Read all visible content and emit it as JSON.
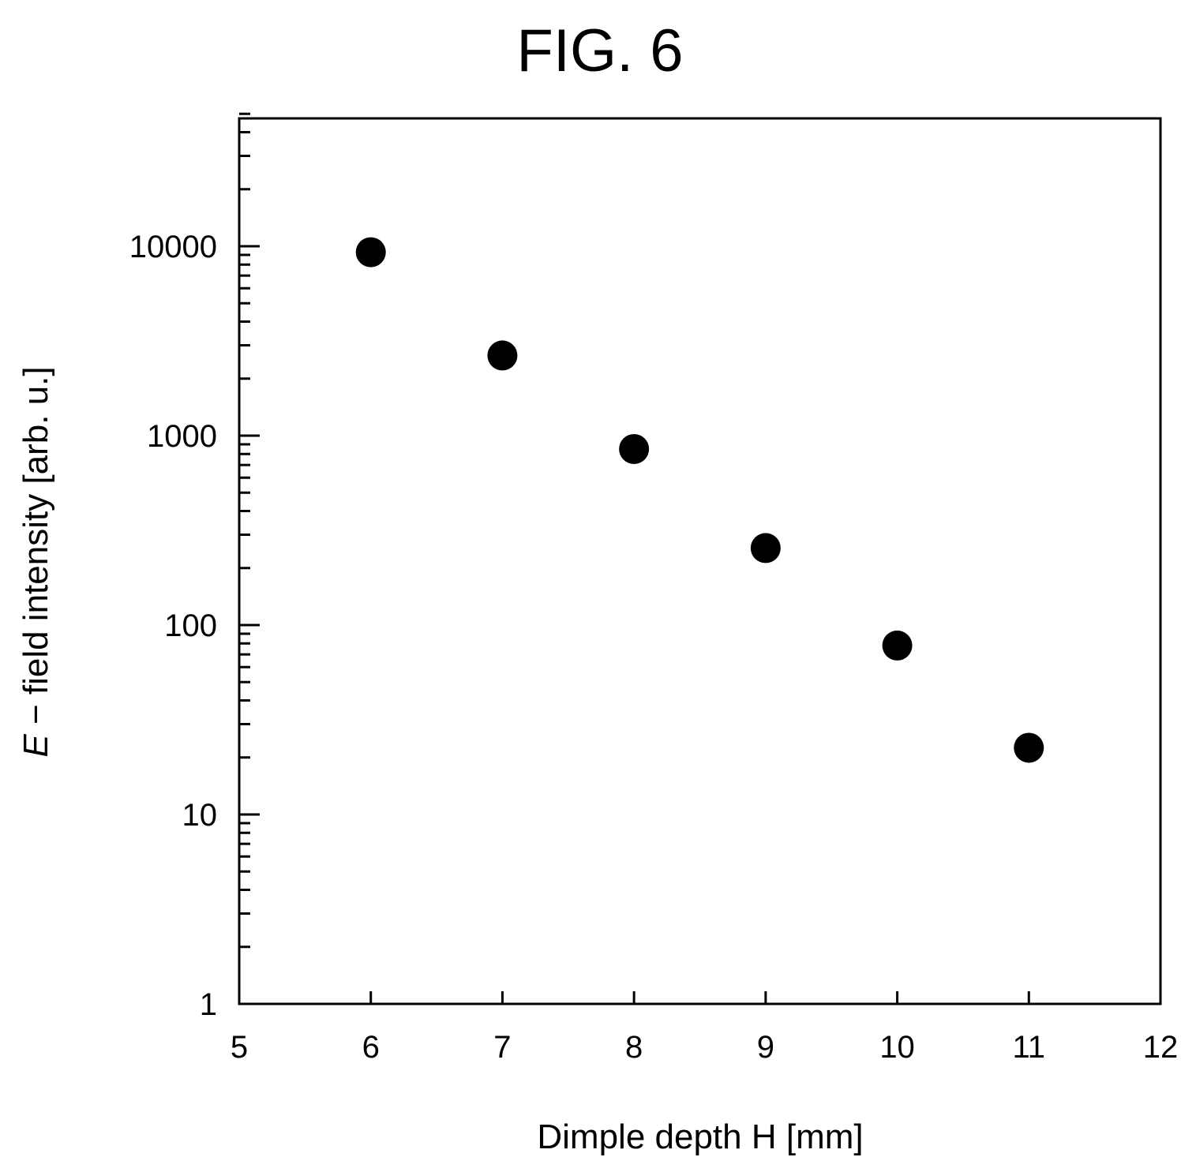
{
  "figure_label": "FIG. 6",
  "chart_data": {
    "type": "scatter",
    "title": "FIG. 6",
    "xlabel": "Dimple depth H [mm]",
    "ylabel_italic": "E",
    "ylabel_rest": " − field intensity [arb. u.]",
    "ylabel": "E − field intensity [arb. u.]",
    "xlim": [
      5,
      12
    ],
    "ylim": [
      1,
      50000
    ],
    "yscale": "log",
    "grid": false,
    "legend": "none",
    "xticks": [
      "5",
      "6",
      "7",
      "8",
      "9",
      "10",
      "11",
      "12"
    ],
    "yticks": [
      "1",
      "10",
      "100",
      "1000",
      "10000"
    ],
    "series": [
      {
        "x": [
          6,
          7,
          8,
          9,
          10,
          11
        ],
        "y": [
          9300,
          2650,
          850,
          255,
          78,
          22.5
        ]
      }
    ],
    "marker_color": "#000000"
  }
}
